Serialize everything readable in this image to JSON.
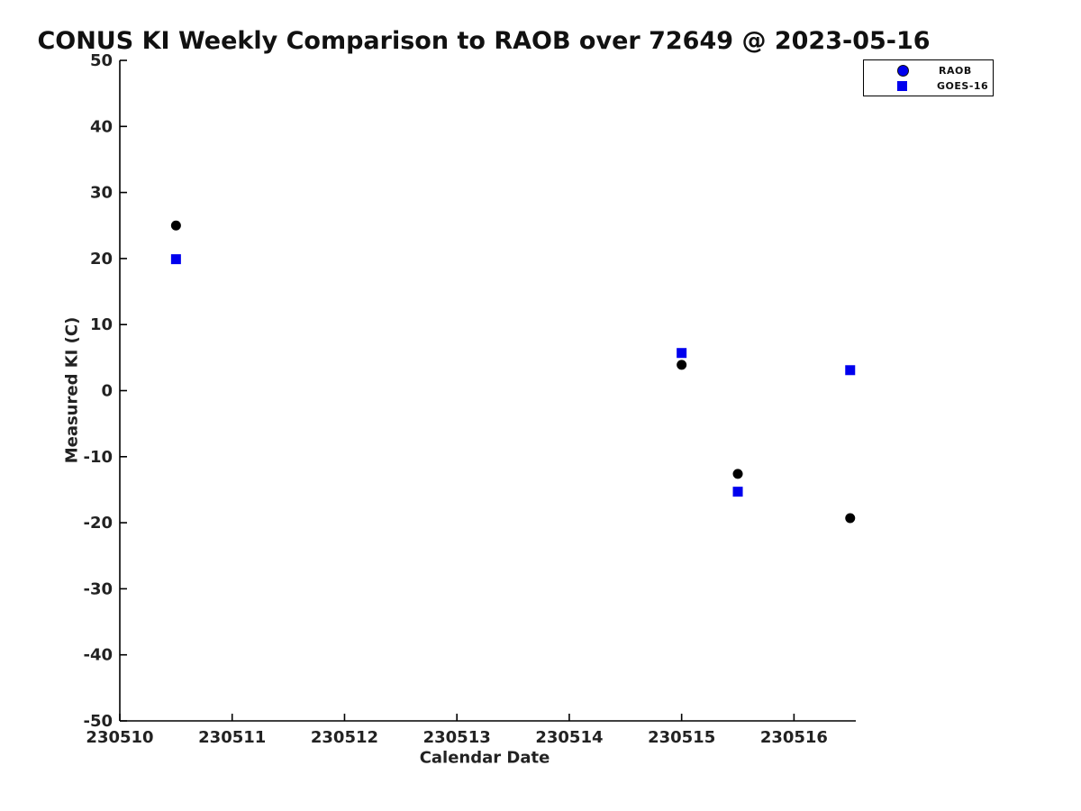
{
  "figure": {
    "background_color": "#FFFFFF",
    "accent_blue": "#0000EE",
    "marker_black": "#000000"
  },
  "chart_data": {
    "type": "scatter",
    "title": "CONUS KI Weekly Comparison to RAOB over 72649 @ 2023-05-16",
    "xlabel": "Calendar Date",
    "ylabel": "Measured KI (C)",
    "xlim": [
      230510,
      230516.55
    ],
    "ylim": [
      -50,
      50
    ],
    "xticks": [
      230510,
      230511,
      230512,
      230513,
      230514,
      230515,
      230516
    ],
    "yticks": [
      -50,
      -40,
      -30,
      -20,
      -10,
      0,
      10,
      20,
      30,
      40,
      50
    ],
    "grid": false,
    "axis_color": "#000000",
    "legend_position": "top-right-outside",
    "series": [
      {
        "name": "RAOB",
        "marker": "circle",
        "marker_color": "#000000",
        "legend_marker_color": "#0000EE",
        "points": [
          {
            "x": 230510.5,
            "y": 25.0
          },
          {
            "x": 230515.0,
            "y": 3.9
          },
          {
            "x": 230515.5,
            "y": -12.6
          },
          {
            "x": 230516.5,
            "y": -19.3
          }
        ]
      },
      {
        "name": "GOES-16",
        "marker": "square",
        "marker_color": "#0000EE",
        "legend_marker_color": "#0000EE",
        "points": [
          {
            "x": 230510.5,
            "y": 19.9
          },
          {
            "x": 230515.0,
            "y": 5.7
          },
          {
            "x": 230515.5,
            "y": -15.3
          },
          {
            "x": 230516.5,
            "y": 3.1
          }
        ]
      }
    ]
  }
}
